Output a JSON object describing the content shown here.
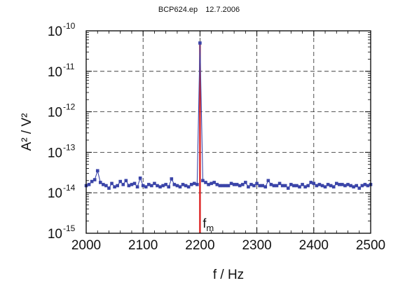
{
  "header": {
    "file": "BCP624.ep",
    "date": "12.7.2006"
  },
  "chart_data": {
    "type": "line",
    "title": "BCP624.ep 12.7.2006",
    "xlabel": "f / Hz",
    "ylabel": "A² / V²",
    "xlim": [
      2000,
      2500
    ],
    "ylim": [
      1e-15,
      1e-10
    ],
    "y_scale": "log",
    "grid": true,
    "x_ticks": [
      2000,
      2100,
      2200,
      2300,
      2400,
      2500
    ],
    "x_tick_labels": [
      "2000",
      "2100",
      "2200",
      "2300",
      "2400",
      "2500"
    ],
    "y_ticks": [
      1e-15,
      1e-14,
      1e-13,
      1e-12,
      1e-11,
      1e-10
    ],
    "y_tick_labels": [
      {
        "base": "10",
        "exp": "-15"
      },
      {
        "base": "10",
        "exp": "-14"
      },
      {
        "base": "10",
        "exp": "-13"
      },
      {
        "base": "10",
        "exp": "-12"
      },
      {
        "base": "10",
        "exp": "-11"
      },
      {
        "base": "10",
        "exp": "-10"
      }
    ],
    "series": [
      {
        "color": "#3a44a8",
        "marker": "square",
        "x": [
          2000,
          2005,
          2010,
          2015,
          2020,
          2025,
          2030,
          2035,
          2040,
          2045,
          2050,
          2055,
          2060,
          2065,
          2070,
          2075,
          2080,
          2085,
          2090,
          2095,
          2100,
          2105,
          2110,
          2115,
          2120,
          2125,
          2130,
          2135,
          2140,
          2145,
          2150,
          2155,
          2160,
          2165,
          2170,
          2175,
          2180,
          2185,
          2190,
          2195,
          2200,
          2205,
          2210,
          2215,
          2220,
          2225,
          2230,
          2235,
          2240,
          2245,
          2250,
          2255,
          2260,
          2265,
          2270,
          2275,
          2280,
          2285,
          2290,
          2295,
          2300,
          2305,
          2310,
          2315,
          2320,
          2325,
          2330,
          2335,
          2340,
          2345,
          2350,
          2355,
          2360,
          2365,
          2370,
          2375,
          2380,
          2385,
          2390,
          2395,
          2400,
          2405,
          2410,
          2415,
          2420,
          2425,
          2430,
          2435,
          2440,
          2445,
          2450,
          2455,
          2460,
          2465,
          2470,
          2475,
          2480,
          2485,
          2490,
          2495,
          2500
        ],
        "y": [
          1.5e-14,
          1.6e-14,
          1.9e-14,
          2.1e-14,
          3.5e-14,
          1.8e-14,
          1.6e-14,
          1.5e-14,
          1.3e-14,
          1.7e-14,
          1.4e-14,
          1.5e-14,
          1.9e-14,
          1.6e-14,
          2e-14,
          1.5e-14,
          1.6e-14,
          1.7e-14,
          1.4e-14,
          2.3e-14,
          1.5e-14,
          1.4e-14,
          1.6e-14,
          1.5e-14,
          1.7e-14,
          1.5e-14,
          1.4e-14,
          1.5e-14,
          1.6e-14,
          1.4e-14,
          2.2e-14,
          1.6e-14,
          1.5e-14,
          1.4e-14,
          1.6e-14,
          1.5e-14,
          1.4e-14,
          1.6e-14,
          1.7e-14,
          1.6e-14,
          5e-11,
          2e-14,
          1.8e-14,
          1.6e-14,
          1.7e-14,
          1.8e-14,
          1.6e-14,
          1.5e-14,
          1.5e-14,
          1.5e-14,
          1.5e-14,
          1.7e-14,
          1.6e-14,
          1.6e-14,
          1.5e-14,
          1.6e-14,
          1.8e-14,
          1.4e-14,
          1.6e-14,
          1.5e-14,
          1.7e-14,
          1.5e-14,
          1.5e-14,
          1.4e-14,
          2e-14,
          1.6e-14,
          1.5e-14,
          1.5e-14,
          1.7e-14,
          1.5e-14,
          1.5e-14,
          1.3e-14,
          1.6e-14,
          1.5e-14,
          1.5e-14,
          1.4e-14,
          1.6e-14,
          1.4e-14,
          1.5e-14,
          1.8e-14,
          1.7e-14,
          1.5e-14,
          1.6e-14,
          1.5e-14,
          1.4e-14,
          1.6e-14,
          1.5e-14,
          1.4e-14,
          1.7e-14,
          1.6e-14,
          1.6e-14,
          1.5e-14,
          1.6e-14,
          1.5e-14,
          1.4e-14,
          1.5e-14,
          1.3e-14,
          1.5e-14,
          1.6e-14,
          1.5e-14,
          1.6e-14
        ]
      }
    ],
    "marker_line": {
      "x": 2200,
      "color": "#dd2222",
      "label": "f",
      "label_sub": "m"
    }
  }
}
